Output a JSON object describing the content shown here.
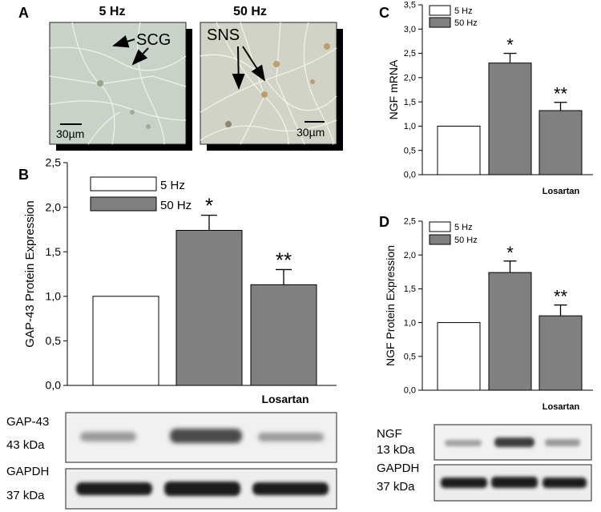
{
  "panel_a": {
    "letter": "A",
    "images": [
      {
        "title": "5 Hz",
        "annotation": "SCG",
        "scale_bar": "30µm"
      },
      {
        "title": "50 Hz",
        "annotation": "SNS",
        "scale_bar": "30µm"
      }
    ]
  },
  "chart_data": [
    {
      "panel": "B",
      "type": "bar",
      "ylabel": "GAP-43 Protein Expression",
      "xlabel": "Losartan",
      "ylim": [
        0,
        2.5
      ],
      "yticks": [
        "0,0",
        "0,5",
        "1,0",
        "1,5",
        "2,0",
        "2,5"
      ],
      "legend": [
        {
          "name": "5 Hz",
          "color": "#ffffff"
        },
        {
          "name": "50 Hz",
          "color": "#808080"
        }
      ],
      "values": [
        1.0,
        1.74,
        1.13
      ],
      "errors": [
        0,
        0.17,
        0.17
      ],
      "significance": [
        "",
        "*",
        "**"
      ],
      "colors": [
        "#ffffff",
        "#808080",
        "#808080"
      ]
    },
    {
      "panel": "C",
      "type": "bar",
      "ylabel": "NGF mRNA",
      "xlabel": "Losartan",
      "ylim": [
        0,
        3.5
      ],
      "yticks": [
        "0,0",
        "0,5",
        "1,0",
        "1,5",
        "2,0",
        "2,5",
        "3,0",
        "3,5"
      ],
      "legend": [
        {
          "name": "5 Hz",
          "color": "#ffffff"
        },
        {
          "name": "50 Hz",
          "color": "#808080"
        }
      ],
      "values": [
        1.0,
        2.3,
        1.32
      ],
      "errors": [
        0,
        0.2,
        0.17
      ],
      "significance": [
        "",
        "*",
        "**"
      ],
      "colors": [
        "#ffffff",
        "#808080",
        "#808080"
      ]
    },
    {
      "panel": "D",
      "type": "bar",
      "ylabel": "NGF Protein Expression",
      "xlabel": "Losartan",
      "ylim": [
        0,
        2.5
      ],
      "yticks": [
        "0,0",
        "0,5",
        "1,0",
        "1,5",
        "2,0",
        "2,5"
      ],
      "legend": [
        {
          "name": "5 Hz",
          "color": "#ffffff"
        },
        {
          "name": "50 Hz",
          "color": "#808080"
        }
      ],
      "values": [
        1.0,
        1.74,
        1.1
      ],
      "errors": [
        0,
        0.17,
        0.16
      ],
      "significance": [
        "",
        "*",
        "**"
      ],
      "colors": [
        "#ffffff",
        "#808080",
        "#808080"
      ]
    }
  ],
  "blots_b": [
    {
      "protein": "GAP-43",
      "size": "43 kDa"
    },
    {
      "protein": "GAPDH",
      "size": "37 kDa"
    }
  ],
  "blots_d": [
    {
      "protein": "NGF",
      "size": "13 kDa"
    },
    {
      "protein": "GAPDH",
      "size": "37 kDa"
    }
  ]
}
